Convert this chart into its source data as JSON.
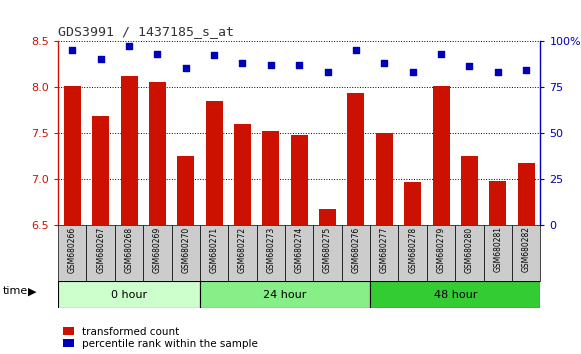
{
  "title": "GDS3991 / 1437185_s_at",
  "samples": [
    "GSM680266",
    "GSM680267",
    "GSM680268",
    "GSM680269",
    "GSM680270",
    "GSM680271",
    "GSM680272",
    "GSM680273",
    "GSM680274",
    "GSM680275",
    "GSM680276",
    "GSM680277",
    "GSM680278",
    "GSM680279",
    "GSM680280",
    "GSM680281",
    "GSM680282"
  ],
  "bar_values": [
    8.01,
    7.68,
    8.12,
    8.05,
    7.25,
    7.85,
    7.6,
    7.52,
    7.48,
    6.67,
    7.93,
    7.5,
    6.97,
    8.01,
    7.25,
    6.98,
    7.17
  ],
  "dot_values": [
    95,
    90,
    97,
    93,
    85,
    92,
    88,
    87,
    87,
    83,
    95,
    88,
    83,
    93,
    86,
    83,
    84
  ],
  "groups": [
    {
      "label": "0 hour",
      "start": 0,
      "end": 5,
      "color": "#ccffcc"
    },
    {
      "label": "24 hour",
      "start": 5,
      "end": 11,
      "color": "#88ee88"
    },
    {
      "label": "48 hour",
      "start": 11,
      "end": 17,
      "color": "#33cc33"
    }
  ],
  "ylim_left": [
    6.5,
    8.5
  ],
  "ylim_right": [
    0,
    100
  ],
  "bar_color": "#cc1100",
  "dot_color": "#0000bb",
  "plot_bg_color": "#ffffff",
  "tick_box_color": "#cccccc",
  "title_color": "#333333",
  "left_axis_color": "#cc1100",
  "right_axis_color": "#0000bb",
  "yticks_left": [
    6.5,
    7.0,
    7.5,
    8.0,
    8.5
  ],
  "yticks_right": [
    0,
    25,
    50,
    75,
    100
  ]
}
